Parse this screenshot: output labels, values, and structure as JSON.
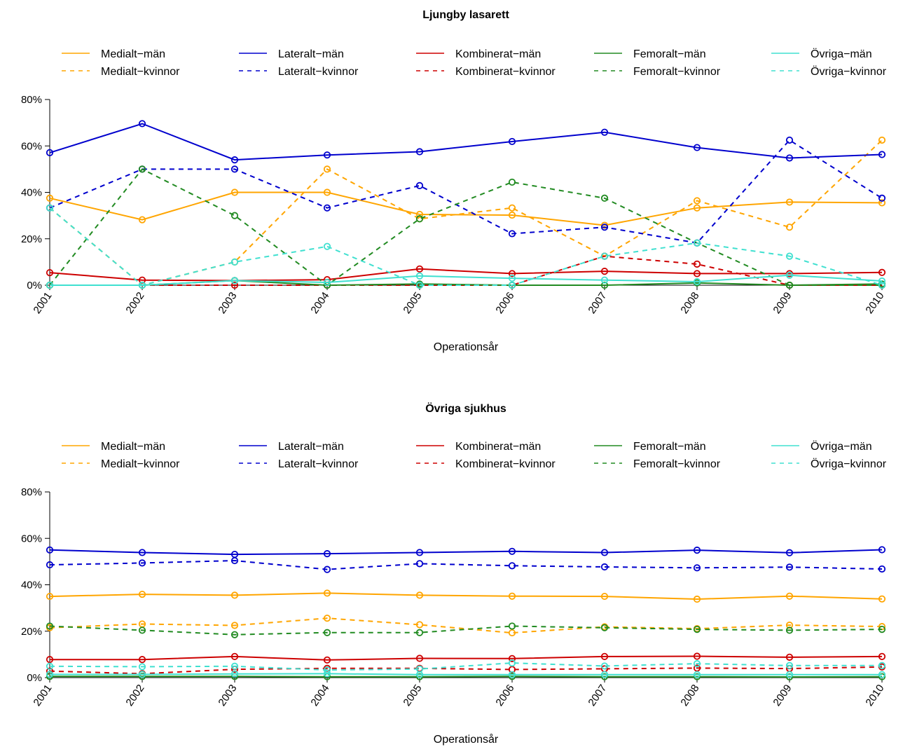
{
  "chart_data": [
    {
      "type": "line",
      "title": "Ljungby lasarett",
      "xlabel": "Operationsår",
      "ylabel": "",
      "x": [
        2001,
        2002,
        2003,
        2004,
        2005,
        2006,
        2007,
        2008,
        2009,
        2010
      ],
      "x_tick_labels": [
        "2001",
        "2002",
        "2003",
        "2004",
        "2005",
        "2006",
        "2007",
        "2008",
        "2009",
        "2010"
      ],
      "ylim": [
        0,
        80
      ],
      "y_ticks": [
        0,
        20,
        40,
        60,
        80
      ],
      "y_tick_labels": [
        "0%",
        "20%",
        "40%",
        "60%",
        "80%"
      ],
      "legend_position": "top",
      "series": [
        {
          "name": "Medialt−män",
          "color": "#FFA500",
          "dash": "solid",
          "values": [
            37.5,
            28.2,
            40.0,
            40.0,
            30.5,
            30.2,
            25.8,
            33.3,
            35.8,
            35.5
          ]
        },
        {
          "name": "Medialt−kvinnor",
          "color": "#FFA500",
          "dash": "dashed",
          "values": [
            33.3,
            0,
            10.0,
            50.0,
            28.6,
            33.3,
            12.5,
            36.4,
            25.0,
            62.5
          ]
        },
        {
          "name": "Lateralt−män",
          "color": "#0000CD",
          "dash": "solid",
          "values": [
            57.1,
            69.6,
            54.0,
            56.1,
            57.5,
            61.9,
            65.9,
            59.3,
            54.8,
            56.3
          ]
        },
        {
          "name": "Lateralt−kvinnor",
          "color": "#0000CD",
          "dash": "dashed",
          "values": [
            33.3,
            50.0,
            50.0,
            33.3,
            42.9,
            22.2,
            25.0,
            18.2,
            62.5,
            37.5
          ]
        },
        {
          "name": "Kombinerat−män",
          "color": "#CD0000",
          "dash": "solid",
          "values": [
            5.4,
            2.2,
            2.0,
            2.4,
            7.0,
            5.0,
            6.0,
            5.0,
            5.0,
            5.5
          ]
        },
        {
          "name": "Kombinerat−kvinnor",
          "color": "#CD0000",
          "dash": "dashed",
          "values": [
            0,
            0,
            0,
            0,
            0,
            0,
            12.5,
            9.1,
            0,
            0
          ]
        },
        {
          "name": "Femoralt−män",
          "color": "#228B22",
          "dash": "solid",
          "values": [
            0,
            0,
            2.0,
            0,
            0.5,
            0,
            0,
            1.0,
            0,
            0.5
          ]
        },
        {
          "name": "Femoralt−kvinnor",
          "color": "#228B22",
          "dash": "dashed",
          "values": [
            0,
            50.0,
            30.0,
            0,
            28.6,
            44.4,
            37.5,
            18.2,
            0,
            0
          ]
        },
        {
          "name": "Övriga−män",
          "color": "#40E0D0",
          "dash": "solid",
          "values": [
            0,
            0,
            2.0,
            1.2,
            4.0,
            3.0,
            2.2,
            1.5,
            4.3,
            1.8
          ]
        },
        {
          "name": "Övriga−kvinnor",
          "color": "#40E0D0",
          "dash": "dashed",
          "values": [
            33.3,
            0,
            10.0,
            16.7,
            0,
            0,
            12.5,
            18.2,
            12.5,
            0
          ]
        }
      ]
    },
    {
      "type": "line",
      "title": "Övriga sjukhus",
      "xlabel": "Operationsår",
      "ylabel": "",
      "x": [
        2001,
        2002,
        2003,
        2004,
        2005,
        2006,
        2007,
        2008,
        2009,
        2010
      ],
      "x_tick_labels": [
        "2001",
        "2002",
        "2003",
        "2004",
        "2005",
        "2006",
        "2007",
        "2008",
        "2009",
        "2010"
      ],
      "ylim": [
        0,
        80
      ],
      "y_ticks": [
        0,
        20,
        40,
        60,
        80
      ],
      "y_tick_labels": [
        "0%",
        "20%",
        "40%",
        "60%",
        "80%"
      ],
      "legend_position": "top",
      "series": [
        {
          "name": "Medialt−män",
          "color": "#FFA500",
          "dash": "solid",
          "values": [
            35.0,
            35.9,
            35.5,
            36.4,
            35.5,
            35.1,
            35.0,
            33.8,
            35.1,
            33.9
          ]
        },
        {
          "name": "Medialt−kvinnor",
          "color": "#FFA500",
          "dash": "dashed",
          "values": [
            21.5,
            23.1,
            22.5,
            25.6,
            22.8,
            19.3,
            21.9,
            21.1,
            22.6,
            22.0
          ]
        },
        {
          "name": "Lateralt−män",
          "color": "#0000CD",
          "dash": "solid",
          "values": [
            55.0,
            53.9,
            53.1,
            53.4,
            53.9,
            54.4,
            53.9,
            54.9,
            53.8,
            55.1
          ]
        },
        {
          "name": "Lateralt−kvinnor",
          "color": "#0000CD",
          "dash": "dashed",
          "values": [
            48.6,
            49.4,
            50.4,
            46.6,
            49.1,
            48.2,
            47.7,
            47.3,
            47.6,
            46.8
          ]
        },
        {
          "name": "Kombinerat−män",
          "color": "#CD0000",
          "dash": "solid",
          "values": [
            7.8,
            7.8,
            9.1,
            7.6,
            8.3,
            8.2,
            9.1,
            9.2,
            8.8,
            9.1
          ]
        },
        {
          "name": "Kombinerat−kvinnor",
          "color": "#CD0000",
          "dash": "dashed",
          "values": [
            2.8,
            1.7,
            3.6,
            4.0,
            4.0,
            3.5,
            3.8,
            4.1,
            3.9,
            4.6
          ]
        },
        {
          "name": "Femoralt−män",
          "color": "#228B22",
          "dash": "solid",
          "values": [
            0.5,
            0.5,
            0.5,
            0.4,
            0.4,
            0.5,
            0.4,
            0.4,
            0.3,
            0.4
          ]
        },
        {
          "name": "Femoralt−kvinnor",
          "color": "#228B22",
          "dash": "dashed",
          "values": [
            22.2,
            20.4,
            18.5,
            19.4,
            19.4,
            22.2,
            21.5,
            20.8,
            20.4,
            20.8
          ]
        },
        {
          "name": "Övriga−män",
          "color": "#40E0D0",
          "dash": "solid",
          "values": [
            1.4,
            1.4,
            1.6,
            1.7,
            1.3,
            1.3,
            1.3,
            1.3,
            1.3,
            1.3
          ]
        },
        {
          "name": "Övriga−kvinnor",
          "color": "#40E0D0",
          "dash": "dashed",
          "values": [
            4.9,
            4.7,
            4.9,
            3.3,
            3.7,
            6.3,
            5.0,
            6.0,
            5.2,
            5.2
          ]
        }
      ]
    }
  ]
}
